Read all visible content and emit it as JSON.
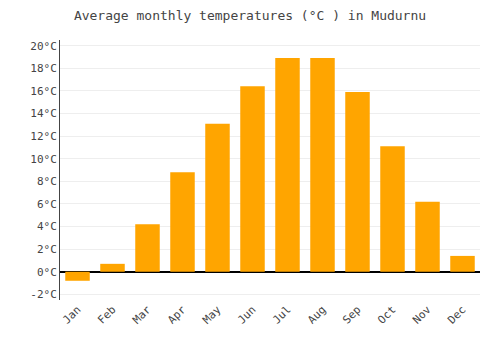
{
  "chart_data": {
    "type": "bar",
    "title": "Average monthly temperatures (°C ) in Mudurnu",
    "categories": [
      "Jan",
      "Feb",
      "Mar",
      "Apr",
      "May",
      "Jun",
      "Jul",
      "Aug",
      "Sep",
      "Oct",
      "Nov",
      "Dec"
    ],
    "values": [
      -0.8,
      0.7,
      4.2,
      8.8,
      13.1,
      16.4,
      18.9,
      18.9,
      15.9,
      11.1,
      6.2,
      1.4
    ],
    "color": "#FFA500",
    "ylim": [
      -2.5,
      20.5
    ],
    "yticks": [
      {
        "value": -2,
        "label": "-2°C"
      },
      {
        "value": 0,
        "label": "0°C"
      },
      {
        "value": 2,
        "label": "2°C"
      },
      {
        "value": 4,
        "label": "4°C"
      },
      {
        "value": 6,
        "label": "6°C"
      },
      {
        "value": 8,
        "label": "8°C"
      },
      {
        "value": 10,
        "label": "10°C"
      },
      {
        "value": 12,
        "label": "12°C"
      },
      {
        "value": 14,
        "label": "14°C"
      },
      {
        "value": 16,
        "label": "16°C"
      },
      {
        "value": 18,
        "label": "18°C"
      },
      {
        "value": 20,
        "label": "20°C"
      }
    ],
    "grid": true
  }
}
